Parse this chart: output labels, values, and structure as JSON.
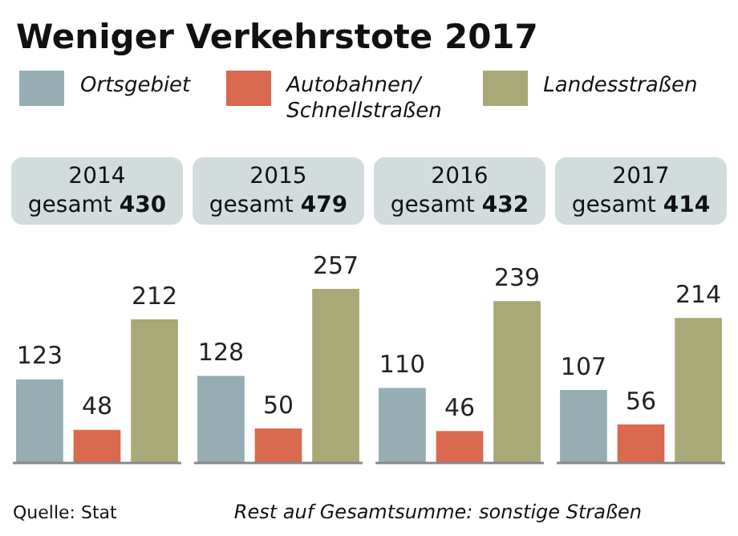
{
  "chart_data": {
    "type": "bar",
    "title": "Weniger Verkehrstote 2017",
    "categories": [
      "2014",
      "2015",
      "2016",
      "2017"
    ],
    "series": [
      {
        "name": "Ortsgebiet",
        "color": "#95adb3",
        "values": [
          123,
          128,
          110,
          107
        ]
      },
      {
        "name": "Autobahnen/ Schnellstraßen",
        "color": "#d9694f",
        "values": [
          48,
          50,
          46,
          56
        ]
      },
      {
        "name": "Landesstraßen",
        "color": "#a9a877",
        "values": [
          212,
          257,
          239,
          214
        ]
      }
    ],
    "data_labels": true,
    "legend": "top",
    "grid": true,
    "annotations": [
      "gesamt 430",
      "gesamt 479",
      "gesamt 432",
      "gesamt 414",
      "Quelle: Stat",
      "Rest auf Gesamtsumme: sonstige Straßen"
    ]
  }
}
